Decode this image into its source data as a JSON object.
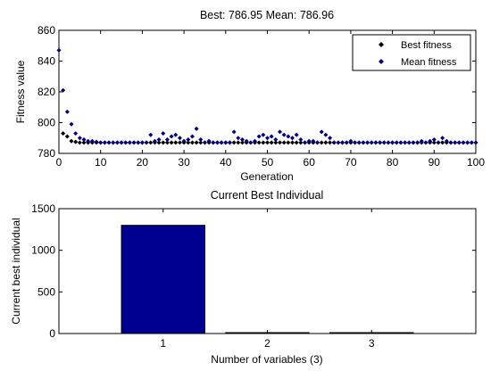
{
  "chart_data": [
    {
      "type": "scatter",
      "title": "Best: 786.95 Mean: 786.96",
      "xlabel": "Generation",
      "ylabel": "Fitness value",
      "xlim": [
        0,
        100
      ],
      "ylim": [
        780,
        860
      ],
      "xticks": [
        0,
        10,
        20,
        30,
        40,
        50,
        60,
        70,
        80,
        90,
        100
      ],
      "yticks": [
        780,
        800,
        820,
        840,
        860
      ],
      "legend": {
        "placement": "top-right",
        "entries": [
          "Best fitness",
          "Mean fitness"
        ]
      },
      "series": [
        {
          "name": "Best fitness",
          "marker_color": "#000000",
          "x": [
            1,
            2,
            3,
            4,
            5,
            6,
            7,
            8,
            9,
            10,
            11,
            12,
            13,
            14,
            15,
            16,
            17,
            18,
            19,
            20,
            21,
            22,
            23,
            24,
            25,
            26,
            27,
            28,
            29,
            30,
            31,
            32,
            33,
            34,
            35,
            36,
            37,
            38,
            39,
            40,
            41,
            42,
            43,
            44,
            45,
            46,
            47,
            48,
            49,
            50,
            51,
            52,
            53,
            54,
            55,
            56,
            57,
            58,
            59,
            60,
            61,
            62,
            63,
            64,
            65,
            66,
            67,
            68,
            69,
            70,
            71,
            72,
            73,
            74,
            75,
            76,
            77,
            78,
            79,
            80,
            81,
            82,
            83,
            84,
            85,
            86,
            87,
            88,
            89,
            90,
            91,
            92,
            93,
            94,
            95,
            96,
            97,
            98,
            99,
            100
          ],
          "y": [
            793,
            791,
            788,
            787.5,
            787,
            787,
            787,
            787,
            787,
            787,
            787,
            787,
            787,
            787,
            787,
            787,
            787,
            787,
            787,
            787,
            787,
            787,
            787,
            787,
            787,
            787,
            787,
            787,
            787,
            787,
            787,
            787,
            787,
            787,
            787,
            787,
            787,
            787,
            787,
            787,
            787,
            787,
            787,
            787,
            787,
            787,
            787,
            787,
            787,
            787,
            787,
            787,
            787,
            787,
            787,
            787,
            787,
            787,
            787,
            787,
            787,
            787,
            787,
            787,
            787,
            787,
            787,
            787,
            787,
            787,
            787,
            787,
            787,
            787,
            787,
            787,
            787,
            787,
            787,
            787,
            787,
            787,
            787,
            787,
            787,
            787,
            787,
            787,
            787,
            787,
            787,
            787,
            787,
            787,
            787,
            787,
            787,
            787,
            787,
            787
          ]
        },
        {
          "name": "Mean fitness",
          "marker_color": "#000080",
          "x": [
            0,
            1,
            2,
            3,
            4,
            5,
            6,
            7,
            8,
            9,
            10,
            11,
            12,
            13,
            14,
            15,
            16,
            17,
            18,
            19,
            20,
            21,
            22,
            23,
            24,
            25,
            26,
            27,
            28,
            29,
            30,
            31,
            32,
            33,
            34,
            35,
            36,
            37,
            38,
            39,
            40,
            41,
            42,
            43,
            44,
            45,
            46,
            47,
            48,
            49,
            50,
            51,
            52,
            53,
            54,
            55,
            56,
            57,
            58,
            59,
            60,
            61,
            62,
            63,
            64,
            65,
            66,
            67,
            68,
            69,
            70,
            71,
            72,
            73,
            74,
            75,
            76,
            77,
            78,
            79,
            80,
            81,
            82,
            83,
            84,
            85,
            86,
            87,
            88,
            89,
            90,
            91,
            92,
            93,
            94,
            95,
            96,
            97,
            98,
            99,
            100
          ],
          "y": [
            847,
            821,
            807,
            799,
            793,
            790,
            789,
            788,
            788,
            787.5,
            787,
            787,
            787,
            787,
            787,
            787,
            787,
            787,
            787,
            787,
            787,
            787,
            792,
            788,
            789,
            793,
            789,
            791,
            792,
            790,
            788,
            789,
            791,
            796,
            789,
            787,
            788,
            787,
            787,
            787,
            787,
            787,
            794,
            790,
            789,
            788,
            787,
            788,
            791,
            792,
            790,
            791,
            789,
            794,
            792,
            791,
            790,
            792,
            789,
            787,
            788,
            788,
            787,
            794,
            792,
            790,
            787,
            787,
            787,
            787,
            788,
            787,
            787,
            787,
            787,
            787,
            787,
            787,
            787,
            787,
            787,
            787,
            787,
            787,
            787,
            787,
            787,
            788,
            787,
            788,
            789,
            787,
            790,
            788,
            787,
            787,
            787,
            787,
            787,
            787,
            787
          ]
        }
      ]
    },
    {
      "type": "bar",
      "title": "Current Best Individual",
      "xlabel": "Number of variables (3)",
      "ylabel": "Current best individual",
      "categories": [
        "1",
        "2",
        "3"
      ],
      "values": [
        1300,
        8,
        6
      ],
      "ylim": [
        0,
        1500
      ],
      "yticks": [
        0,
        500,
        1000,
        1500
      ],
      "bar_color": "#00008f"
    }
  ]
}
